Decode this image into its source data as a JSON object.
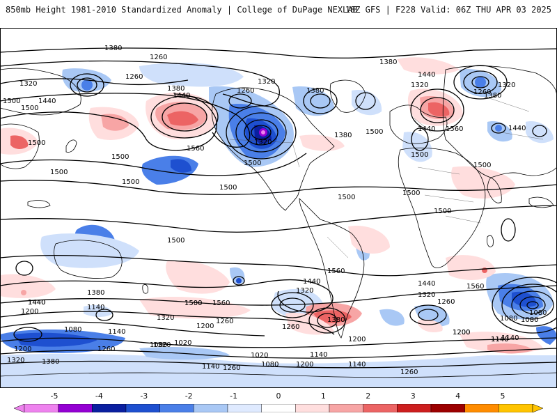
{
  "header": {
    "title": "850mb Height 1981-2010 Standardized Anomaly | College of DuPage NEXLAB",
    "run_info": "18Z GFS | F228 Valid: 06Z THU APR 03 2025"
  },
  "legend": {
    "ticks": [
      "-5",
      "-4",
      "-3",
      "-2",
      "-1",
      "0",
      "1",
      "2",
      "3",
      "4",
      "5"
    ],
    "colors": [
      "#ee82ee",
      "#9400d3",
      "#0a1fa0",
      "#1e50d0",
      "#4a7fe8",
      "#a9c8f5",
      "#dfeaff",
      "#ffffff",
      "#ffdede",
      "#f7a5a5",
      "#ec6464",
      "#cd1e1e",
      "#9c0000",
      "#ff8c00",
      "#ffc400"
    ]
  },
  "contour_labels": [
    "1380",
    "1260",
    "1260",
    "1320",
    "1380",
    "1440",
    "1500",
    "1500",
    "1500",
    "1380",
    "1320",
    "1260",
    "1440",
    "1500",
    "1560",
    "1320",
    "1500",
    "1500",
    "1500",
    "1380",
    "1320",
    "1440",
    "1500",
    "1380",
    "1500",
    "1440",
    "1320",
    "1260",
    "1380",
    "1440",
    "1560",
    "1500",
    "1500",
    "1500",
    "1500",
    "1500",
    "1500",
    "1560",
    "1440",
    "1320",
    "1260",
    "1200",
    "1140",
    "1080",
    "1140",
    "1200",
    "1260",
    "1320",
    "1380",
    "1440",
    "1500",
    "1560",
    "1440",
    "1320",
    "1260",
    "1200",
    "1140",
    "1080",
    "1020",
    "1080",
    "1140",
    "1200",
    "1260",
    "1140",
    "1080",
    "1140",
    "1200",
    "1260",
    "1320",
    "1380",
    "1440",
    "1500",
    "1560",
    "1200",
    "1140",
    "1260",
    "1320",
    "1380",
    "1200",
    "1140",
    "1080",
    "1080",
    "1020"
  ]
}
